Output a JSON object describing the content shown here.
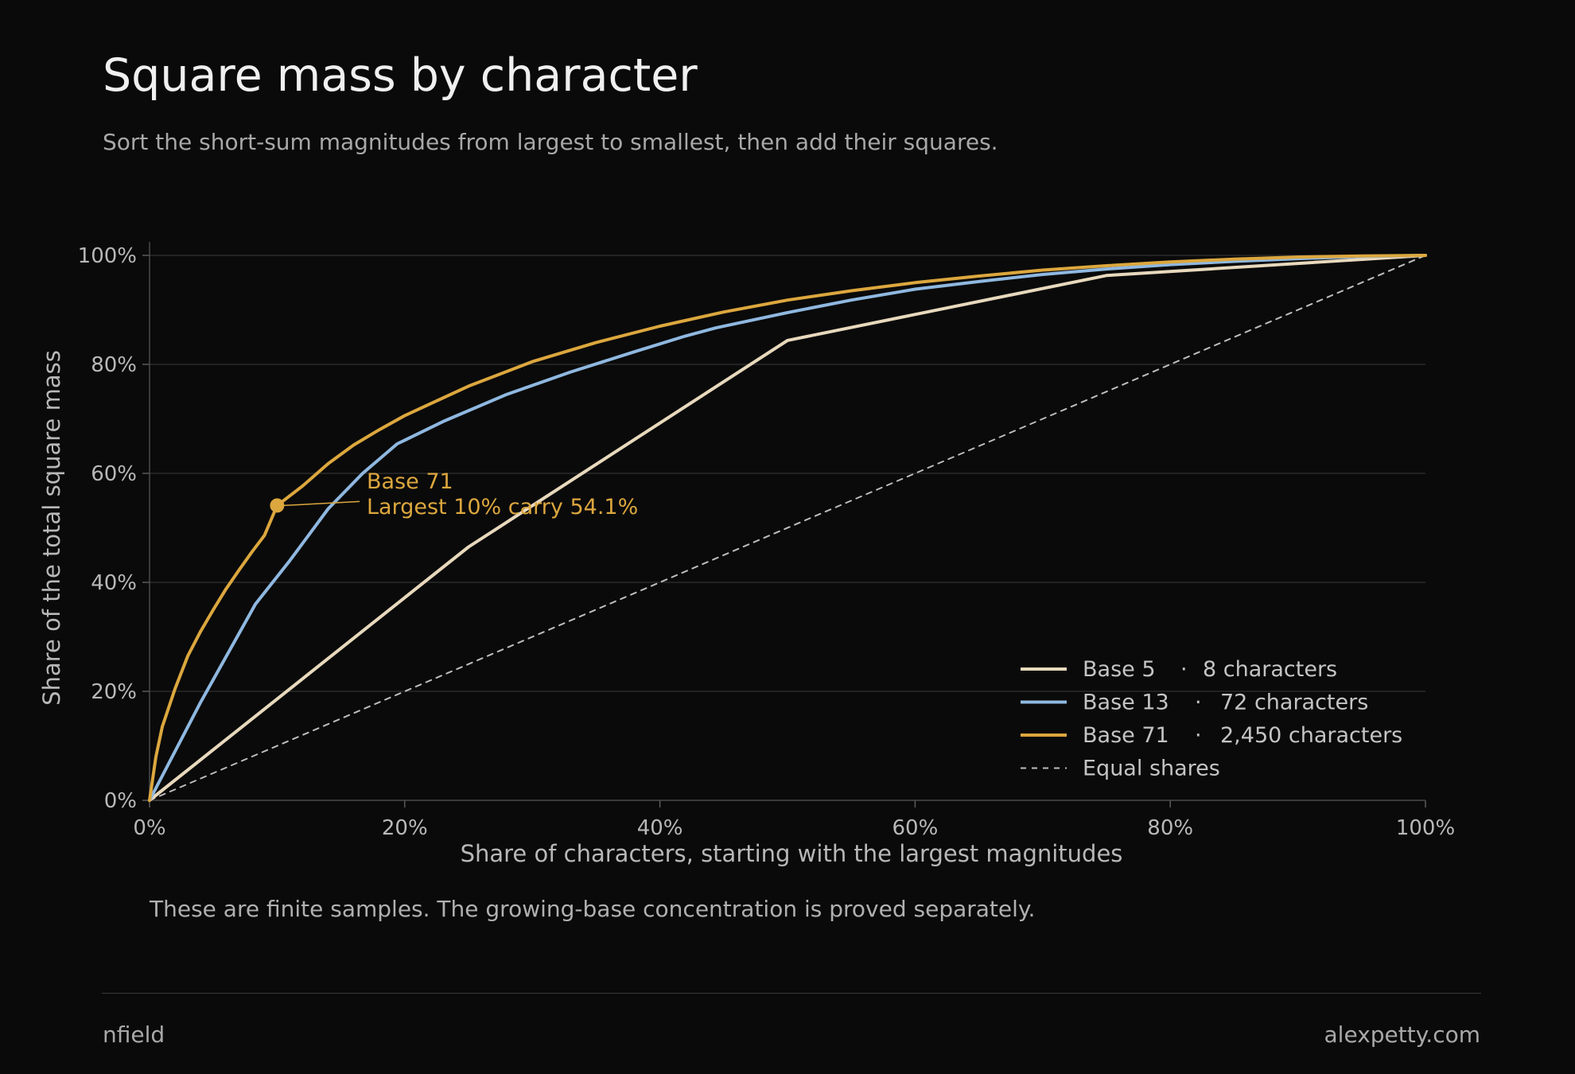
{
  "header": {
    "title": "Square mass by character",
    "subtitle": "Sort the short-sum magnitudes from largest to smallest, then add their squares."
  },
  "note": "These are finite samples. The growing-base concentration is proved separately.",
  "footer": {
    "left": "nfield",
    "right": "alexpetty.com"
  },
  "colors": {
    "background": "#0a0a0a",
    "base5": "#e8d9bd",
    "base13": "#8fb8e0",
    "base71": "#dca73e",
    "equal": "#bdbdbd"
  },
  "chart_data": {
    "type": "line",
    "xlabel": "Share of characters, starting with the largest magnitudes",
    "ylabel": "Share of the total square mass",
    "xlim": [
      0,
      100
    ],
    "ylim": [
      0,
      100
    ],
    "x_ticks": [
      "0%",
      "20%",
      "40%",
      "60%",
      "80%",
      "100%"
    ],
    "y_ticks": [
      "0%",
      "20%",
      "40%",
      "60%",
      "80%",
      "100%"
    ],
    "grid": "horizontal",
    "legend_position": "bottom-right",
    "series": [
      {
        "name": "Base 5",
        "count": "8 characters",
        "color": "#e8d9bd",
        "points": [
          [
            0,
            0
          ],
          [
            25,
            46.5
          ],
          [
            50,
            84.4
          ],
          [
            75,
            96.3
          ],
          [
            100,
            100
          ]
        ]
      },
      {
        "name": "Base 13",
        "count": "72 characters",
        "color": "#8fb8e0",
        "points": [
          [
            0,
            0
          ],
          [
            4,
            18
          ],
          [
            8.3,
            36
          ],
          [
            11,
            44
          ],
          [
            14,
            53.5
          ],
          [
            16.7,
            60
          ],
          [
            19.4,
            65.4
          ],
          [
            23,
            69.5
          ],
          [
            28,
            74.5
          ],
          [
            33,
            78.6
          ],
          [
            38,
            82.3
          ],
          [
            42,
            85.2
          ],
          [
            44.4,
            86.7
          ],
          [
            50,
            89.5
          ],
          [
            55,
            91.8
          ],
          [
            60,
            93.8
          ],
          [
            65,
            95.2
          ],
          [
            70,
            96.5
          ],
          [
            75,
            97.5
          ],
          [
            80,
            98.3
          ],
          [
            85,
            98.9
          ],
          [
            90,
            99.4
          ],
          [
            95,
            99.8
          ],
          [
            100,
            100
          ]
        ]
      },
      {
        "name": "Base 71",
        "count": "2,450 characters",
        "color": "#dca73e",
        "points": [
          [
            0,
            0
          ],
          [
            0.5,
            8
          ],
          [
            1,
            13.5
          ],
          [
            2,
            20.5
          ],
          [
            3,
            26.5
          ],
          [
            4,
            31
          ],
          [
            5,
            35
          ],
          [
            6,
            38.8
          ],
          [
            7,
            42.2
          ],
          [
            8,
            45.5
          ],
          [
            9,
            48.6
          ],
          [
            10,
            54.1
          ],
          [
            12,
            57.7
          ],
          [
            14,
            61.8
          ],
          [
            16,
            65.2
          ],
          [
            18,
            68
          ],
          [
            20,
            70.6
          ],
          [
            25,
            76
          ],
          [
            30,
            80.5
          ],
          [
            35,
            84
          ],
          [
            40,
            87
          ],
          [
            45,
            89.6
          ],
          [
            50,
            91.8
          ],
          [
            55,
            93.5
          ],
          [
            60,
            95
          ],
          [
            65,
            96.2
          ],
          [
            70,
            97.3
          ],
          [
            75,
            98.1
          ],
          [
            80,
            98.8
          ],
          [
            85,
            99.3
          ],
          [
            90,
            99.7
          ],
          [
            95,
            99.9
          ],
          [
            100,
            100
          ]
        ]
      },
      {
        "name": "Equal shares",
        "dashed": true,
        "color": "#bdbdbd",
        "points": [
          [
            0,
            0
          ],
          [
            100,
            100
          ]
        ]
      }
    ],
    "annotation": {
      "series": "Base 71",
      "x": 10,
      "y": 54.1,
      "lines": [
        "Base 71",
        "Largest 10% carry 54.1%"
      ]
    }
  }
}
